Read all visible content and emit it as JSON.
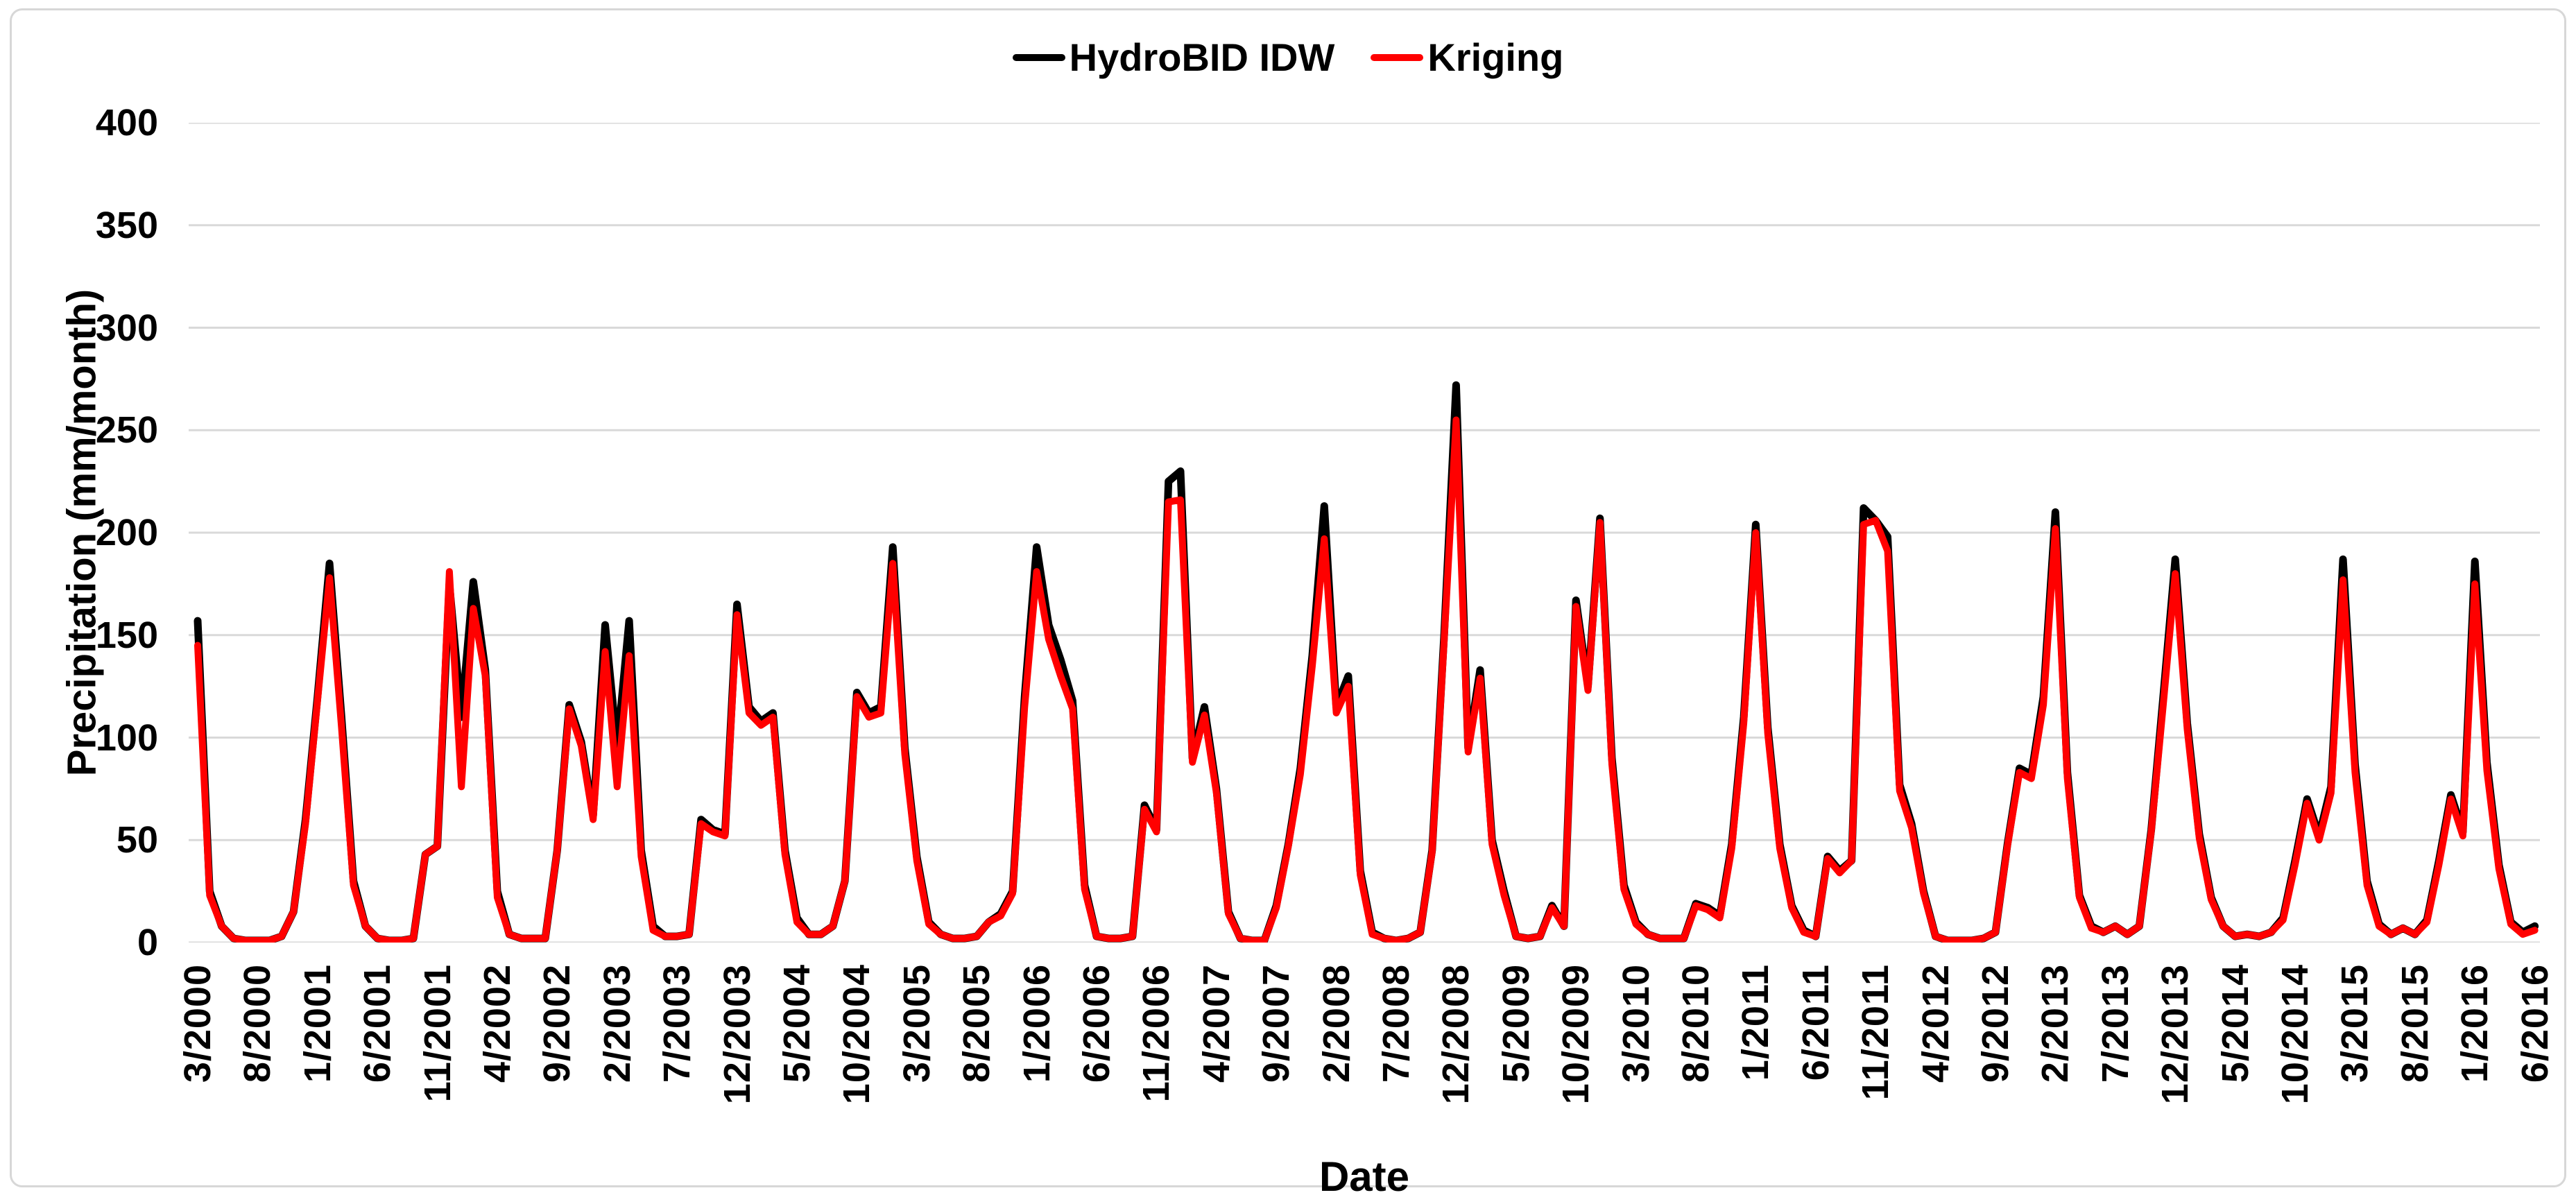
{
  "chart_data": {
    "type": "line",
    "title": "",
    "xlabel": "Date",
    "ylabel": "Precipitation (mm/month)",
    "ylim": [
      0,
      400
    ],
    "y_tick_step": 50,
    "y_ticks": [
      0,
      50,
      100,
      150,
      200,
      250,
      300,
      350,
      400
    ],
    "grid": true,
    "gridline_color": "#d9d9d9",
    "legend_position": "top-center",
    "x_tick_every": 5,
    "x_tick_labels": [
      "3/2000",
      "8/2000",
      "1/2001",
      "6/2001",
      "11/2001",
      "4/2002",
      "9/2002",
      "2/2003",
      "7/2003",
      "12/2003",
      "5/2004",
      "10/2004",
      "3/2005",
      "8/2005",
      "1/2006",
      "6/2006",
      "11/2006",
      "4/2007",
      "9/2007",
      "2/2008",
      "7/2008",
      "12/2008",
      "5/2009",
      "10/2009",
      "3/2010",
      "8/2010",
      "1/2011",
      "6/2011",
      "11/2011",
      "4/2012",
      "9/2012",
      "2/2013",
      "7/2013",
      "12/2013",
      "5/2014",
      "10/2014",
      "3/2015",
      "8/2015",
      "1/2016",
      "6/2016"
    ],
    "x": [
      "3/2000",
      "4/2000",
      "5/2000",
      "6/2000",
      "7/2000",
      "8/2000",
      "9/2000",
      "10/2000",
      "11/2000",
      "12/2000",
      "1/2001",
      "2/2001",
      "3/2001",
      "4/2001",
      "5/2001",
      "6/2001",
      "7/2001",
      "8/2001",
      "9/2001",
      "10/2001",
      "11/2001",
      "12/2001",
      "1/2002",
      "2/2002",
      "3/2002",
      "4/2002",
      "5/2002",
      "6/2002",
      "7/2002",
      "8/2002",
      "9/2002",
      "10/2002",
      "11/2002",
      "12/2002",
      "1/2003",
      "2/2003",
      "3/2003",
      "4/2003",
      "5/2003",
      "6/2003",
      "7/2003",
      "8/2003",
      "9/2003",
      "10/2003",
      "11/2003",
      "12/2003",
      "1/2004",
      "2/2004",
      "3/2004",
      "4/2004",
      "5/2004",
      "6/2004",
      "7/2004",
      "8/2004",
      "9/2004",
      "10/2004",
      "11/2004",
      "12/2004",
      "1/2005",
      "2/2005",
      "3/2005",
      "4/2005",
      "5/2005",
      "6/2005",
      "7/2005",
      "8/2005",
      "9/2005",
      "10/2005",
      "11/2005",
      "12/2005",
      "1/2006",
      "2/2006",
      "3/2006",
      "4/2006",
      "5/2006",
      "6/2006",
      "7/2006",
      "8/2006",
      "9/2006",
      "10/2006",
      "11/2006",
      "12/2006",
      "1/2007",
      "2/2007",
      "3/2007",
      "4/2007",
      "5/2007",
      "6/2007",
      "7/2007",
      "8/2007",
      "9/2007",
      "10/2007",
      "11/2007",
      "12/2007",
      "1/2008",
      "2/2008",
      "3/2008",
      "4/2008",
      "5/2008",
      "6/2008",
      "7/2008",
      "8/2008",
      "9/2008",
      "10/2008",
      "11/2008",
      "12/2008",
      "1/2009",
      "2/2009",
      "3/2009",
      "4/2009",
      "5/2009",
      "6/2009",
      "7/2009",
      "8/2009",
      "9/2009",
      "10/2009",
      "11/2009",
      "12/2009",
      "1/2010",
      "2/2010",
      "3/2010",
      "4/2010",
      "5/2010",
      "6/2010",
      "7/2010",
      "8/2010",
      "9/2010",
      "10/2010",
      "11/2010",
      "12/2010",
      "1/2011",
      "2/2011",
      "3/2011",
      "4/2011",
      "5/2011",
      "6/2011",
      "7/2011",
      "8/2011",
      "9/2011",
      "10/2011",
      "11/2011",
      "12/2011",
      "1/2012",
      "2/2012",
      "3/2012",
      "4/2012",
      "5/2012",
      "6/2012",
      "7/2012",
      "8/2012",
      "9/2012",
      "10/2012",
      "11/2012",
      "12/2012",
      "1/2013",
      "2/2013",
      "3/2013",
      "4/2013",
      "5/2013",
      "6/2013",
      "7/2013",
      "8/2013",
      "9/2013",
      "10/2013",
      "11/2013",
      "12/2013",
      "1/2014",
      "2/2014",
      "3/2014",
      "4/2014",
      "5/2014",
      "6/2014",
      "7/2014",
      "8/2014",
      "9/2014",
      "10/2014",
      "11/2014",
      "12/2014",
      "1/2015",
      "2/2015",
      "3/2015",
      "4/2015",
      "5/2015",
      "6/2015",
      "7/2015",
      "8/2015",
      "9/2015",
      "10/2015",
      "11/2015",
      "12/2015",
      "1/2016",
      "2/2016",
      "3/2016",
      "4/2016",
      "5/2016",
      "6/2016"
    ],
    "series": [
      {
        "name": "HydroBID IDW",
        "color": "#000000",
        "values": [
          157,
          25,
          8,
          2,
          1,
          1,
          1,
          3,
          15,
          60,
          120,
          185,
          110,
          30,
          8,
          2,
          1,
          1,
          2,
          43,
          47,
          175,
          110,
          176,
          133,
          25,
          4,
          2,
          2,
          2,
          45,
          116,
          98,
          62,
          155,
          95,
          157,
          45,
          8,
          3,
          3,
          4,
          60,
          55,
          53,
          165,
          115,
          108,
          112,
          45,
          12,
          4,
          4,
          8,
          30,
          122,
          112,
          115,
          193,
          95,
          42,
          10,
          4,
          2,
          2,
          3,
          10,
          14,
          25,
          120,
          193,
          155,
          138,
          118,
          28,
          3,
          2,
          2,
          3,
          67,
          55,
          225,
          230,
          90,
          115,
          75,
          15,
          2,
          1,
          1,
          18,
          48,
          85,
          140,
          213,
          115,
          130,
          35,
          5,
          2,
          1,
          2,
          5,
          45,
          150,
          272,
          95,
          133,
          50,
          25,
          3,
          2,
          3,
          18,
          8,
          167,
          125,
          207,
          90,
          28,
          10,
          4,
          2,
          2,
          2,
          19,
          17,
          13,
          48,
          110,
          204,
          105,
          48,
          18,
          6,
          3,
          42,
          35,
          40,
          212,
          206,
          198,
          77,
          58,
          25,
          3,
          1,
          1,
          1,
          2,
          5,
          48,
          85,
          82,
          120,
          210,
          83,
          23,
          8,
          5,
          8,
          4,
          8,
          55,
          120,
          187,
          107,
          53,
          22,
          8,
          3,
          4,
          3,
          5,
          12,
          40,
          70,
          52,
          76,
          187,
          87,
          30,
          9,
          4,
          7,
          4,
          11,
          40,
          72,
          54,
          186,
          88,
          38,
          10,
          5,
          8
        ]
      },
      {
        "name": "Kriging",
        "color": "#ff0000",
        "values": [
          145,
          23,
          8,
          2,
          1,
          1,
          1,
          3,
          15,
          58,
          118,
          178,
          105,
          28,
          8,
          2,
          1,
          1,
          2,
          43,
          47,
          181,
          76,
          163,
          130,
          22,
          4,
          2,
          2,
          2,
          45,
          114,
          96,
          60,
          142,
          76,
          140,
          42,
          6,
          3,
          3,
          4,
          58,
          54,
          52,
          160,
          112,
          106,
          110,
          43,
          10,
          4,
          4,
          8,
          30,
          120,
          110,
          112,
          185,
          92,
          40,
          9,
          4,
          2,
          2,
          3,
          10,
          13,
          24,
          115,
          181,
          148,
          130,
          114,
          26,
          3,
          2,
          2,
          3,
          65,
          54,
          215,
          216,
          88,
          111,
          73,
          14,
          2,
          1,
          1,
          17,
          47,
          82,
          135,
          197,
          112,
          125,
          33,
          4,
          2,
          1,
          2,
          5,
          44,
          147,
          255,
          93,
          129,
          48,
          23,
          3,
          2,
          3,
          17,
          8,
          164,
          123,
          205,
          87,
          26,
          9,
          4,
          2,
          2,
          2,
          18,
          16,
          12,
          46,
          107,
          200,
          102,
          46,
          17,
          5,
          3,
          41,
          34,
          40,
          204,
          206,
          191,
          74,
          56,
          24,
          3,
          1,
          1,
          1,
          2,
          5,
          47,
          83,
          80,
          116,
          202,
          80,
          22,
          7,
          5,
          8,
          4,
          8,
          54,
          116,
          180,
          104,
          51,
          21,
          8,
          3,
          4,
          3,
          5,
          11,
          38,
          68,
          50,
          73,
          177,
          83,
          28,
          8,
          4,
          7,
          4,
          10,
          38,
          70,
          52,
          175,
          84,
          36,
          9,
          4,
          6
        ]
      }
    ]
  }
}
